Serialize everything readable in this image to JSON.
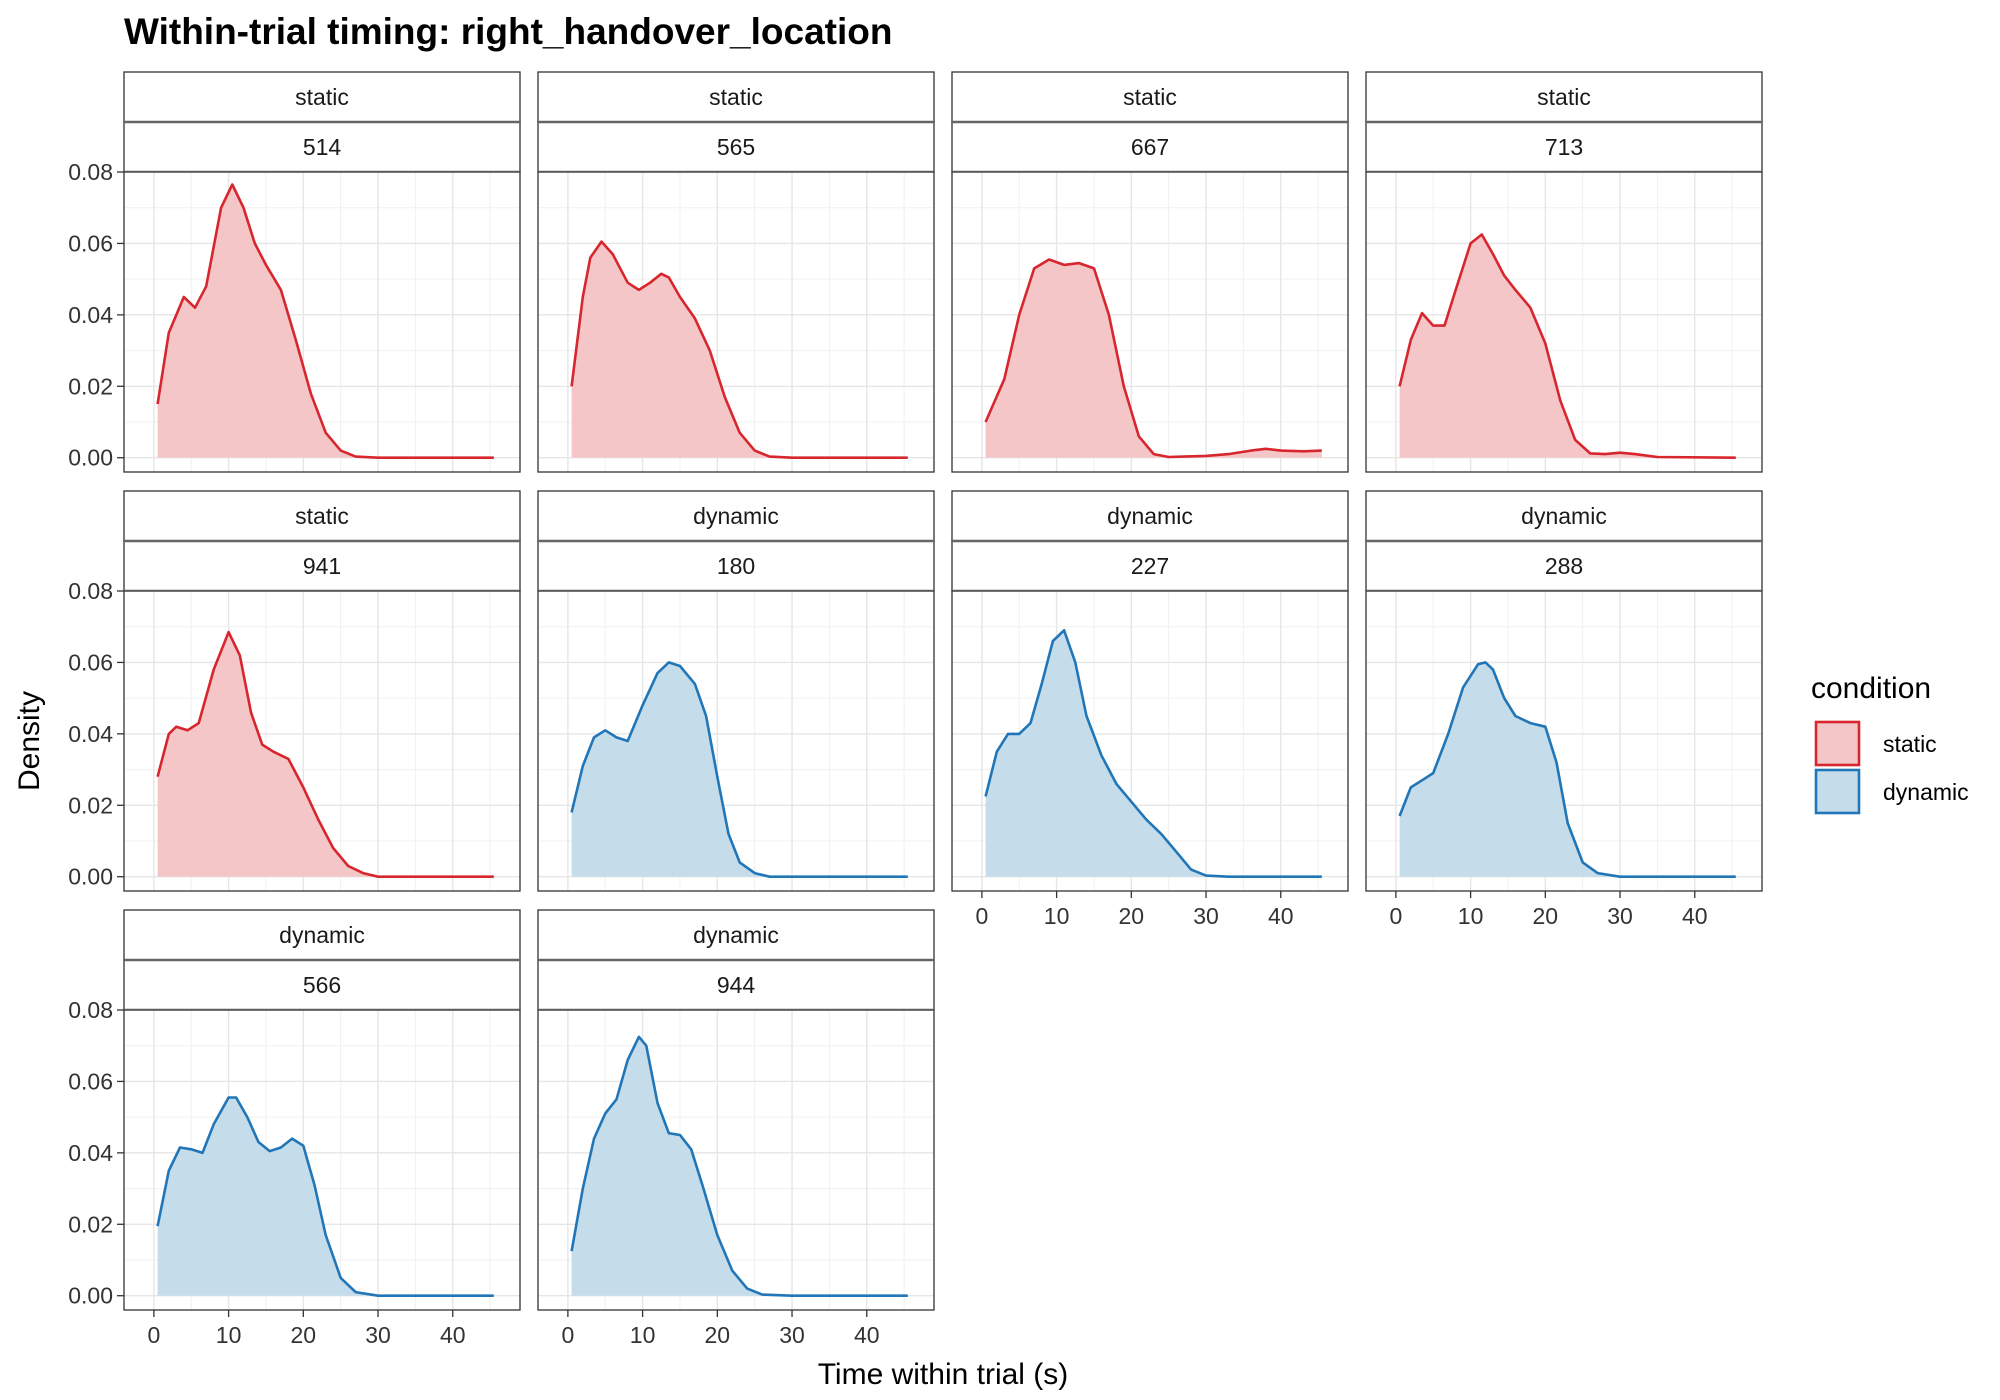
{
  "chart_data": {
    "type": "area",
    "title": "Within-trial timing: right_handover_location",
    "xlabel": "Time within trial (s)",
    "ylabel": "Density",
    "xlim": [
      -4,
      49
    ],
    "ylim": [
      -0.004,
      0.08
    ],
    "x_ticks": [
      0,
      10,
      20,
      30,
      40
    ],
    "x_tick_labels": [
      "0",
      "10",
      "20",
      "30",
      "40"
    ],
    "y_ticks": [
      0,
      0.02,
      0.04,
      0.06,
      0.08
    ],
    "y_tick_labels": [
      "0.00",
      "0.02",
      "0.04",
      "0.06",
      "0.08"
    ],
    "grid": true,
    "legend": {
      "title": "condition",
      "position": "right",
      "entries": [
        {
          "label": "static",
          "line_color": "#d7262d",
          "fill_color": "#f5c6c8"
        },
        {
          "label": "dynamic",
          "line_color": "#2176b8",
          "fill_color": "#c5dceb"
        }
      ]
    },
    "facets": [
      {
        "condition": "static",
        "id": "514",
        "x": [
          0.5,
          2,
          4,
          5.5,
          7,
          9,
          10.5,
          12,
          13.5,
          15,
          17,
          19,
          21,
          23,
          25,
          27,
          30,
          45.5
        ],
        "y": [
          0.015,
          0.035,
          0.045,
          0.042,
          0.048,
          0.07,
          0.0765,
          0.07,
          0.06,
          0.054,
          0.047,
          0.033,
          0.018,
          0.007,
          0.002,
          0.0003,
          0,
          0
        ]
      },
      {
        "condition": "static",
        "id": "565",
        "x": [
          0.5,
          2,
          3,
          4.5,
          6,
          8,
          9.5,
          11,
          12.5,
          13.5,
          15,
          17,
          19,
          21,
          23,
          25,
          27,
          30,
          45.5
        ],
        "y": [
          0.02,
          0.045,
          0.056,
          0.0605,
          0.057,
          0.049,
          0.047,
          0.049,
          0.0515,
          0.0505,
          0.045,
          0.039,
          0.03,
          0.017,
          0.007,
          0.002,
          0.0003,
          0,
          0
        ]
      },
      {
        "condition": "static",
        "id": "667",
        "x": [
          0.5,
          3,
          5,
          7,
          9,
          11,
          13,
          15,
          17,
          19,
          21,
          23,
          25,
          27,
          30,
          33,
          36,
          38,
          40,
          43,
          45.5
        ],
        "y": [
          0.01,
          0.022,
          0.04,
          0.053,
          0.0555,
          0.054,
          0.0545,
          0.053,
          0.04,
          0.02,
          0.006,
          0.001,
          0.0002,
          0.0003,
          0.0005,
          0.001,
          0.002,
          0.0025,
          0.002,
          0.0018,
          0.002
        ]
      },
      {
        "condition": "static",
        "id": "713",
        "x": [
          0.5,
          2,
          3.5,
          5,
          6.5,
          8,
          10,
          11.5,
          13,
          14.5,
          16,
          18,
          20,
          22,
          24,
          26,
          28,
          30,
          32,
          35,
          45.5
        ],
        "y": [
          0.02,
          0.033,
          0.0405,
          0.037,
          0.037,
          0.047,
          0.06,
          0.0625,
          0.057,
          0.051,
          0.047,
          0.042,
          0.032,
          0.016,
          0.005,
          0.0012,
          0.001,
          0.0014,
          0.001,
          0.0002,
          0
        ]
      },
      {
        "condition": "static",
        "id": "941",
        "x": [
          0.5,
          2,
          3,
          4.5,
          6,
          8,
          10,
          11.5,
          13,
          14.5,
          16,
          18,
          20,
          22,
          24,
          26,
          28,
          30,
          45.5
        ],
        "y": [
          0.028,
          0.04,
          0.042,
          0.041,
          0.043,
          0.058,
          0.0685,
          0.062,
          0.046,
          0.037,
          0.035,
          0.033,
          0.025,
          0.016,
          0.008,
          0.003,
          0.001,
          0,
          0
        ]
      },
      {
        "condition": "dynamic",
        "id": "180",
        "x": [
          0.5,
          2,
          3.5,
          5,
          6.5,
          8,
          10,
          12,
          13.5,
          15,
          17,
          18.5,
          20,
          21.5,
          23,
          25,
          27,
          30,
          45.5
        ],
        "y": [
          0.018,
          0.031,
          0.039,
          0.041,
          0.039,
          0.038,
          0.048,
          0.057,
          0.06,
          0.059,
          0.054,
          0.045,
          0.028,
          0.012,
          0.004,
          0.001,
          0,
          0,
          0
        ]
      },
      {
        "condition": "dynamic",
        "id": "227",
        "x": [
          0.5,
          2,
          3.5,
          5,
          6.5,
          8,
          9.5,
          11,
          12.5,
          14,
          16,
          18,
          20,
          22,
          24,
          26,
          28,
          30,
          33,
          45.5
        ],
        "y": [
          0.0225,
          0.035,
          0.04,
          0.04,
          0.043,
          0.054,
          0.066,
          0.069,
          0.06,
          0.045,
          0.034,
          0.026,
          0.021,
          0.016,
          0.012,
          0.007,
          0.002,
          0.0003,
          0,
          0
        ]
      },
      {
        "condition": "dynamic",
        "id": "288",
        "x": [
          0.5,
          2,
          3.5,
          5,
          7,
          9,
          11,
          12,
          13,
          14.5,
          16,
          18,
          20,
          21.5,
          23,
          25,
          27,
          30,
          45.5
        ],
        "y": [
          0.017,
          0.025,
          0.027,
          0.029,
          0.04,
          0.053,
          0.0595,
          0.06,
          0.058,
          0.05,
          0.045,
          0.043,
          0.042,
          0.032,
          0.015,
          0.004,
          0.001,
          0,
          0
        ]
      },
      {
        "condition": "dynamic",
        "id": "566",
        "x": [
          0.5,
          2,
          3.5,
          5,
          6.5,
          8,
          10,
          11,
          12.5,
          14,
          15.5,
          17,
          18.5,
          20,
          21.5,
          23,
          25,
          27,
          30,
          45.5
        ],
        "y": [
          0.0195,
          0.035,
          0.0415,
          0.041,
          0.04,
          0.048,
          0.0555,
          0.0555,
          0.05,
          0.043,
          0.0405,
          0.0415,
          0.044,
          0.042,
          0.031,
          0.017,
          0.005,
          0.001,
          0,
          0
        ]
      },
      {
        "condition": "dynamic",
        "id": "944",
        "x": [
          0.5,
          2,
          3.5,
          5,
          6.5,
          8,
          9.5,
          10.5,
          12,
          13.5,
          15,
          16.5,
          18,
          20,
          22,
          24,
          26,
          30,
          45.5
        ],
        "y": [
          0.0125,
          0.03,
          0.044,
          0.051,
          0.055,
          0.066,
          0.0725,
          0.07,
          0.054,
          0.0455,
          0.045,
          0.041,
          0.031,
          0.017,
          0.007,
          0.002,
          0.0003,
          0,
          0
        ]
      }
    ]
  }
}
